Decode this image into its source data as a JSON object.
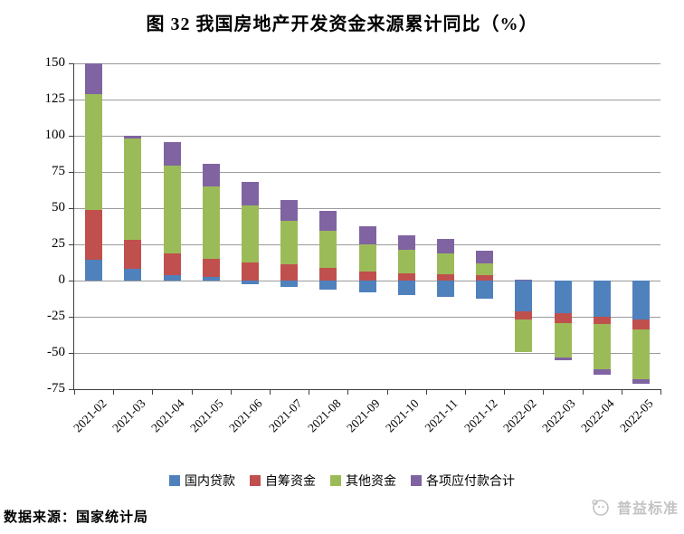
{
  "title": "图 32  我国房地产开发资金来源累计同比（%）",
  "footer": {
    "source": "数据来源：国家统计局",
    "logo_text": "普益标准"
  },
  "colors": {
    "blue": "#4F81BD",
    "red": "#C0504D",
    "green": "#9BBB59",
    "purple": "#8064A2",
    "gridline": "#9b9b9b",
    "axis": "#3f3f3f",
    "logo_gray": "#c3c3c3"
  },
  "chart_data": {
    "type": "bar",
    "stacked": true,
    "title": "图 32  我国房地产开发资金来源累计同比（%）",
    "xlabel": "",
    "ylabel": "",
    "ylim": [
      -75,
      150
    ],
    "y_ticks": [
      150,
      125,
      100,
      75,
      50,
      25,
      0,
      -25,
      -50,
      -75
    ],
    "grid": true,
    "legend_position": "bottom",
    "categories": [
      "2021-02",
      "2021-03",
      "2021-04",
      "2021-05",
      "2021-06",
      "2021-07",
      "2021-08",
      "2021-09",
      "2021-10",
      "2021-11",
      "2021-12",
      "2022-02",
      "2022-03",
      "2022-04",
      "2022-05"
    ],
    "series": [
      {
        "name": "国内贷款",
        "color": "#4F81BD",
        "values": [
          14.4,
          7.9,
          3.9,
          2.3,
          -2.4,
          -4.5,
          -6.1,
          -8.4,
          -10.0,
          -11.0,
          -12.7,
          -21.1,
          -22.6,
          -25.1,
          -26.9
        ]
      },
      {
        "name": "自筹资金",
        "color": "#C0504D",
        "values": [
          34.2,
          20.5,
          14.8,
          12.4,
          12.4,
          11.4,
          8.9,
          6.2,
          5.2,
          4.6,
          3.5,
          -5.9,
          -6.5,
          -4.9,
          -6.6
        ]
      },
      {
        "name": "其他资金",
        "color": "#9BBB59",
        "values": [
          80.0,
          69.9,
          60.9,
          50.4,
          39.3,
          29.6,
          25.5,
          18.6,
          15.9,
          14.0,
          8.5,
          -22.5,
          -23.9,
          -31.0,
          -34.5
        ]
      },
      {
        "name": "各项应付款合计",
        "color": "#8064A2",
        "values": [
          21.4,
          1.9,
          15.8,
          15.5,
          16.4,
          14.8,
          13.8,
          12.4,
          9.9,
          9.9,
          8.7,
          0.9,
          -2.0,
          -4.0,
          -3.5
        ]
      }
    ]
  }
}
